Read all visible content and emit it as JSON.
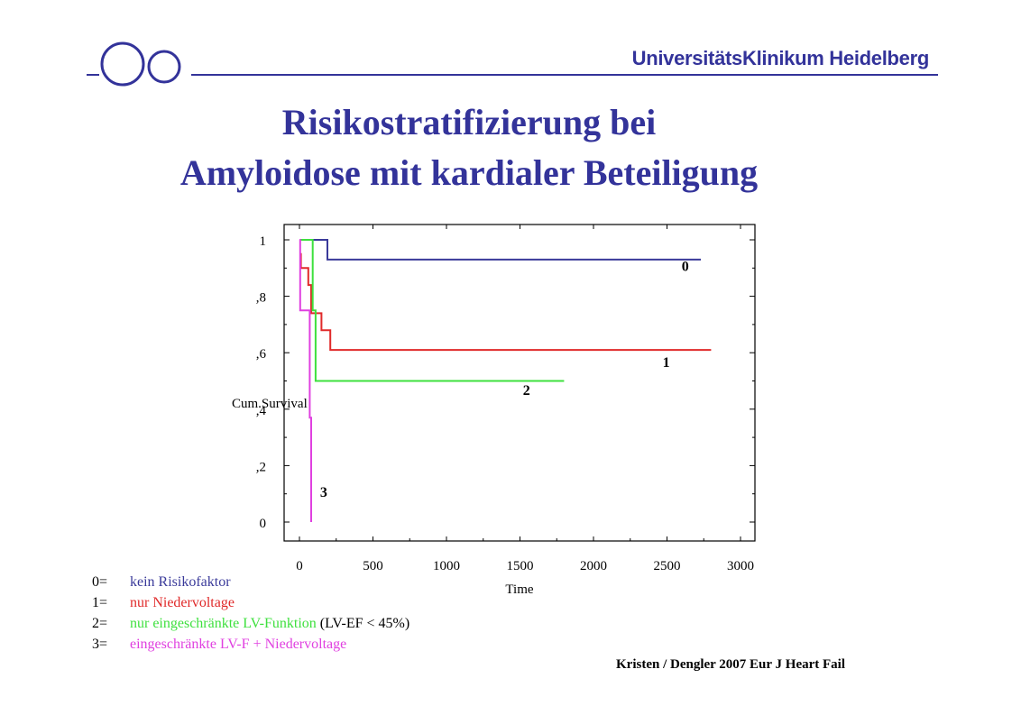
{
  "header": {
    "institution": "UniversitätsKlinikum Heidelberg",
    "logo": "two-circles-logo"
  },
  "slide": {
    "title_line1": "Risikostratifizierung bei",
    "title_line2": "Amyloidose mit kardialer Beteiligung",
    "citation": "Kristen / Dengler 2007 Eur J Heart Fail"
  },
  "legend": [
    {
      "key": "0=",
      "text": "kein Risikofaktor",
      "color": "#3a3a9a",
      "suffix": ""
    },
    {
      "key": "1=",
      "text": "nur Niedervoltage",
      "color": "#e02a2a",
      "suffix": ""
    },
    {
      "key": "2=",
      "text": "nur eingeschränkte LV-Funktion",
      "color": "#3ee03e",
      "suffix": " (LV-EF < 45%)"
    },
    {
      "key": "3=",
      "text": "eingeschränkte LV-F + Niedervoltage",
      "color": "#e040e0",
      "suffix": ""
    }
  ],
  "chart_data": {
    "type": "line",
    "step": true,
    "xlabel": "Time",
    "ylabel": "Cum.Survival",
    "xlim": [
      0,
      3000
    ],
    "ylim": [
      0,
      1
    ],
    "xticks": [
      0,
      500,
      1000,
      1500,
      2000,
      2500,
      3000
    ],
    "xtick_labels": [
      "0",
      "500",
      "1000",
      "1500",
      "2000",
      "2500",
      "3000"
    ],
    "yticks": [
      0,
      0.2,
      0.4,
      0.6,
      0.8,
      1
    ],
    "ytick_labels": [
      "0",
      ",2",
      ",4",
      ",6",
      ",8",
      "1"
    ],
    "grid": false,
    "series": [
      {
        "name": "0",
        "color": "#3a3a9a",
        "points": [
          [
            0,
            1
          ],
          [
            190,
            1
          ],
          [
            190,
            0.93
          ],
          [
            2730,
            0.93
          ]
        ]
      },
      {
        "name": "1",
        "color": "#e02a2a",
        "points": [
          [
            0,
            0.95
          ],
          [
            10,
            0.95
          ],
          [
            10,
            0.9
          ],
          [
            60,
            0.9
          ],
          [
            60,
            0.84
          ],
          [
            80,
            0.84
          ],
          [
            80,
            0.74
          ],
          [
            150,
            0.74
          ],
          [
            150,
            0.68
          ],
          [
            210,
            0.68
          ],
          [
            210,
            0.61
          ],
          [
            2800,
            0.61
          ]
        ]
      },
      {
        "name": "2",
        "color": "#3ee03e",
        "points": [
          [
            0,
            1
          ],
          [
            90,
            1
          ],
          [
            90,
            0.75
          ],
          [
            110,
            0.75
          ],
          [
            110,
            0.5
          ],
          [
            1800,
            0.5
          ]
        ]
      },
      {
        "name": "3",
        "color": "#e040e0",
        "points": [
          [
            0,
            1
          ],
          [
            5,
            1
          ],
          [
            5,
            0.75
          ],
          [
            70,
            0.75
          ],
          [
            70,
            0.37
          ],
          [
            80,
            0.37
          ],
          [
            80,
            0
          ]
        ]
      }
    ],
    "annotations": [
      {
        "text": "0",
        "x": 2600,
        "y": 0.89
      },
      {
        "text": "1",
        "x": 2470,
        "y": 0.55
      },
      {
        "text": "2",
        "x": 1520,
        "y": 0.45
      },
      {
        "text": "3",
        "x": 140,
        "y": 0.09
      }
    ]
  }
}
